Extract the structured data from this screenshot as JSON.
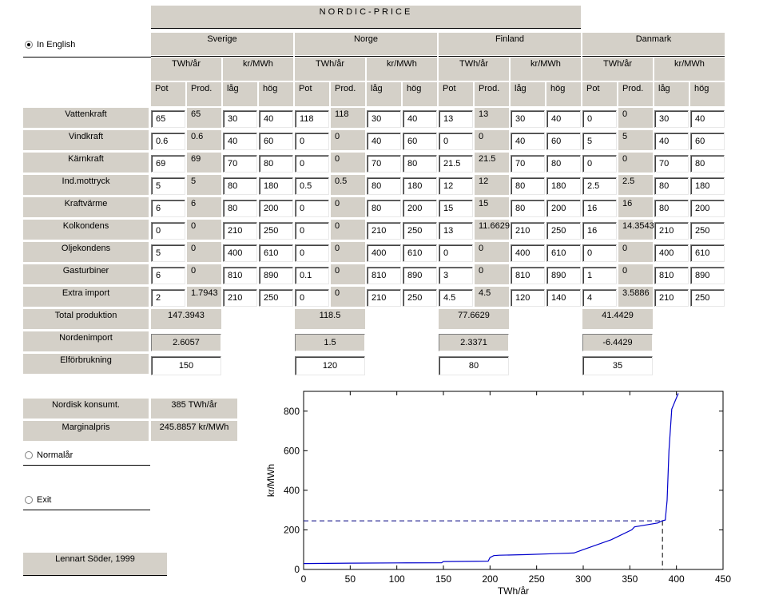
{
  "title": "NORDIC-PRICE",
  "options": {
    "english": "In English",
    "normal_year": "Normalår",
    "exit": "Exit"
  },
  "countries": [
    "Sverige",
    "Norge",
    "Finland",
    "Danmark"
  ],
  "units": {
    "energy": "TWh/år",
    "price": "kr/MWh"
  },
  "subheaders": [
    "Pot",
    "Prod.",
    "låg",
    "hög"
  ],
  "rows": [
    {
      "label": "Vattenkraft",
      "values": [
        [
          "65",
          "65",
          "30",
          "40"
        ],
        [
          "118",
          "118",
          "30",
          "40"
        ],
        [
          "13",
          "13",
          "30",
          "40"
        ],
        [
          "0",
          "0",
          "30",
          "40"
        ]
      ]
    },
    {
      "label": "Vindkraft",
      "values": [
        [
          "0.6",
          "0.6",
          "40",
          "60"
        ],
        [
          "0",
          "0",
          "40",
          "60"
        ],
        [
          "0",
          "0",
          "40",
          "60"
        ],
        [
          "5",
          "5",
          "40",
          "60"
        ]
      ]
    },
    {
      "label": "Kärnkraft",
      "values": [
        [
          "69",
          "69",
          "70",
          "80"
        ],
        [
          "0",
          "0",
          "70",
          "80"
        ],
        [
          "21.5",
          "21.5",
          "70",
          "80"
        ],
        [
          "0",
          "0",
          "70",
          "80"
        ]
      ]
    },
    {
      "label": "Ind.mottryck",
      "values": [
        [
          "5",
          "5",
          "80",
          "180"
        ],
        [
          "0.5",
          "0.5",
          "80",
          "180"
        ],
        [
          "12",
          "12",
          "80",
          "180"
        ],
        [
          "2.5",
          "2.5",
          "80",
          "180"
        ]
      ]
    },
    {
      "label": "Kraftvärme",
      "values": [
        [
          "6",
          "6",
          "80",
          "200"
        ],
        [
          "0",
          "0",
          "80",
          "200"
        ],
        [
          "15",
          "15",
          "80",
          "200"
        ],
        [
          "16",
          "16",
          "80",
          "200"
        ]
      ]
    },
    {
      "label": "Kolkondens",
      "values": [
        [
          "0",
          "0",
          "210",
          "250"
        ],
        [
          "0",
          "0",
          "210",
          "250"
        ],
        [
          "13",
          "11.6629",
          "210",
          "250"
        ],
        [
          "16",
          "14.3543",
          "210",
          "250"
        ]
      ]
    },
    {
      "label": "Oljekondens",
      "values": [
        [
          "5",
          "0",
          "400",
          "610"
        ],
        [
          "0",
          "0",
          "400",
          "610"
        ],
        [
          "0",
          "0",
          "400",
          "610"
        ],
        [
          "0",
          "0",
          "400",
          "610"
        ]
      ]
    },
    {
      "label": "Gasturbiner",
      "values": [
        [
          "6",
          "0",
          "810",
          "890"
        ],
        [
          "0.1",
          "0",
          "810",
          "890"
        ],
        [
          "3",
          "0",
          "810",
          "890"
        ],
        [
          "1",
          "0",
          "810",
          "890"
        ]
      ]
    },
    {
      "label": "Extra import",
      "values": [
        [
          "2",
          "1.7943",
          "210",
          "250"
        ],
        [
          "0",
          "0",
          "210",
          "250"
        ],
        [
          "4.5",
          "4.5",
          "120",
          "140"
        ],
        [
          "4",
          "3.5886",
          "210",
          "250"
        ]
      ]
    }
  ],
  "totals": {
    "total_label": "Total produktion",
    "total": [
      "147.3943",
      "118.5",
      "77.6629",
      "41.4429"
    ],
    "import_label": "Nordenimport",
    "import": [
      "2.6057",
      "1.5",
      "2.3371",
      "-6.4429"
    ],
    "consumption_label": "Elförbrukning",
    "consumption": [
      "150",
      "120",
      "80",
      "35"
    ]
  },
  "summary": {
    "consumption_label": "Nordisk konsumt.",
    "consumption_value": "385 TWh/år",
    "price_label": "Marginalpris",
    "price_value": "245.8857 kr/MWh"
  },
  "author": "Lennart Söder, 1999",
  "chart_data": {
    "type": "line",
    "xlabel": "TWh/år",
    "ylabel": "kr/MWh",
    "xlim": [
      0,
      450
    ],
    "ylim": [
      0,
      900
    ],
    "xticks": [
      0,
      50,
      100,
      150,
      200,
      250,
      300,
      350,
      400,
      450
    ],
    "yticks": [
      0,
      200,
      400,
      600,
      800
    ],
    "grid": false,
    "series": [
      {
        "color": "#0000cc",
        "x": [
          0,
          50,
          100,
          148,
          150,
          198,
          200,
          204,
          210,
          240,
          270,
          290,
          300,
          330,
          352,
          355,
          380,
          385,
          388,
          390,
          392,
          395,
          402
        ],
        "y": [
          30,
          32,
          33,
          34,
          40,
          42,
          60,
          70,
          72,
          75,
          80,
          83,
          100,
          150,
          200,
          215,
          235,
          246,
          250,
          350,
          600,
          810,
          890
        ]
      }
    ],
    "marker": {
      "x": 385,
      "y": 245.8857,
      "style": "dashed",
      "color": "#000080"
    }
  }
}
